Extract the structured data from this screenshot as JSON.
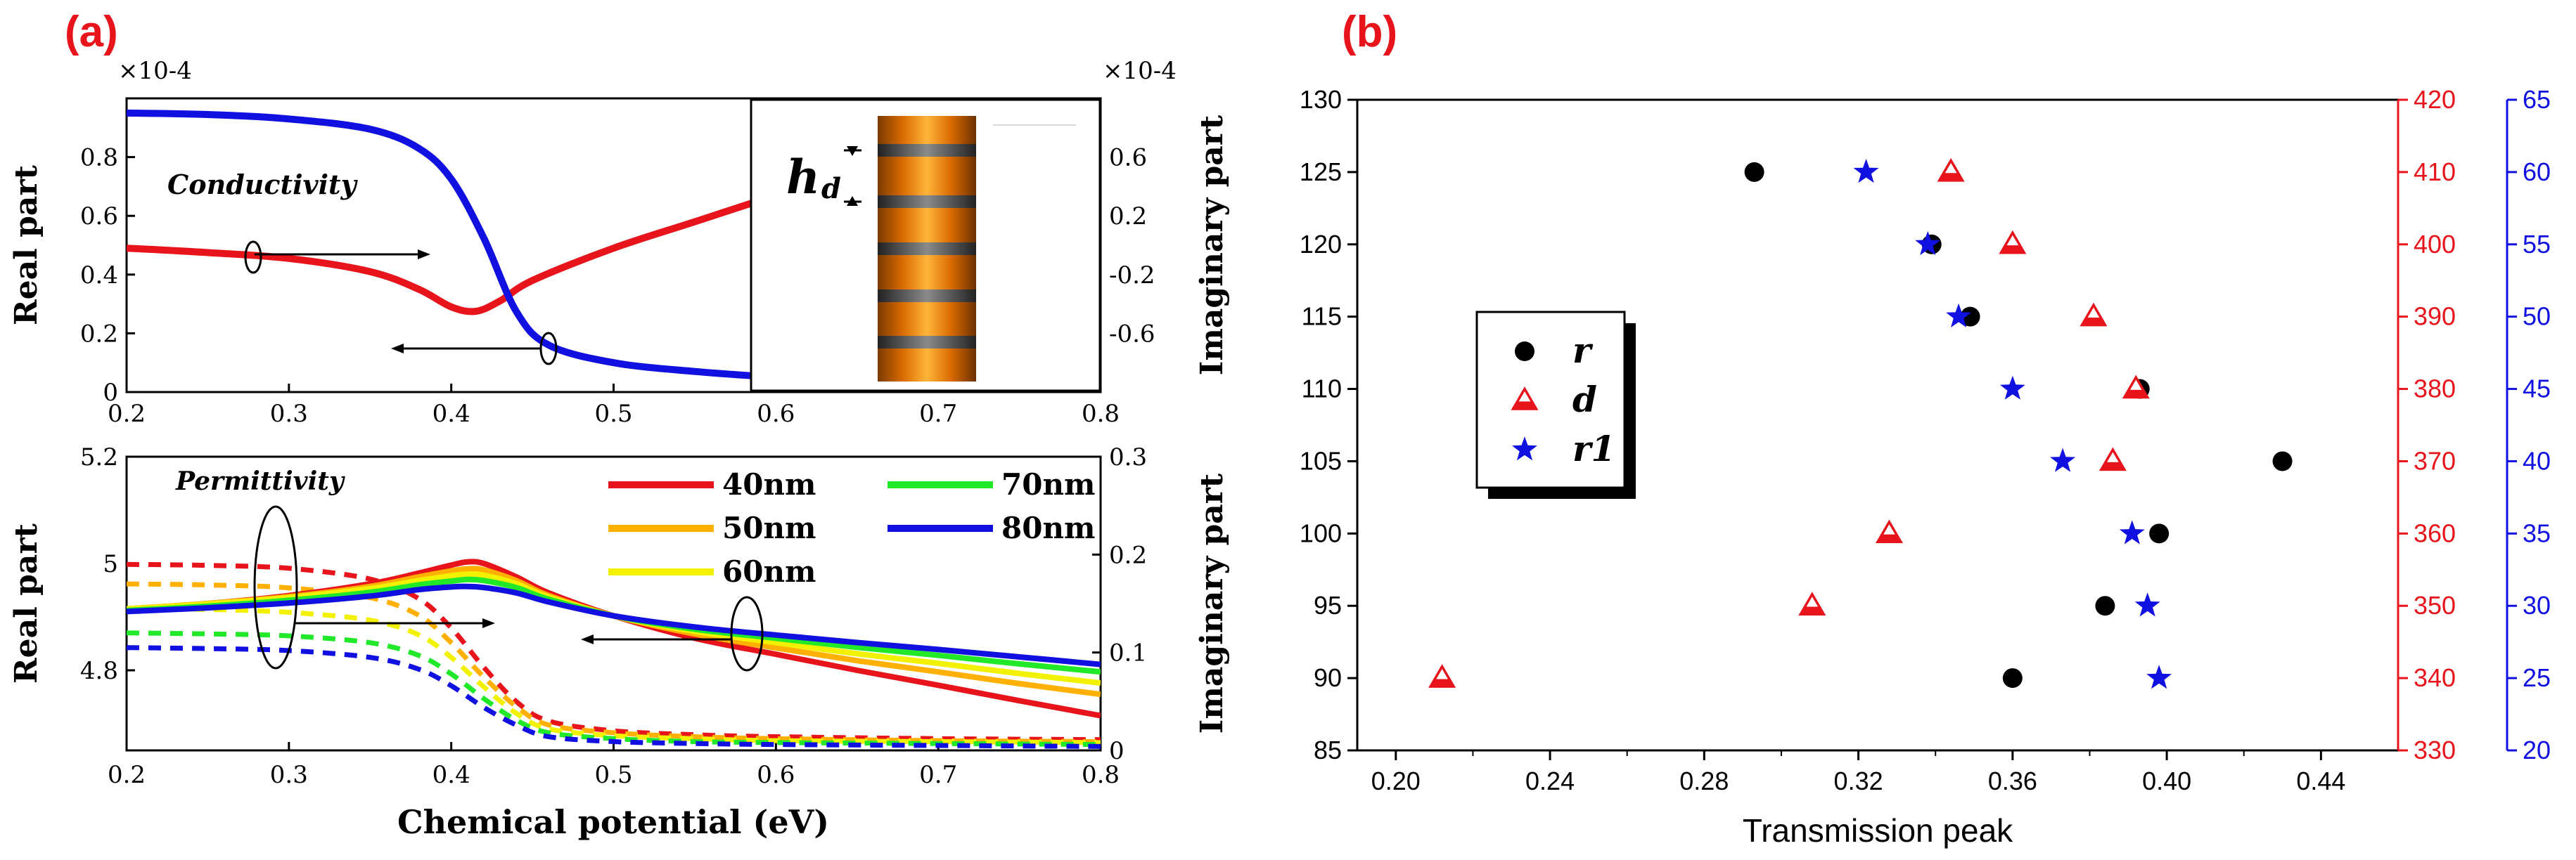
{
  "panel_labels": {
    "a": "(a)",
    "b": "(b)"
  },
  "colors": {
    "red": "#e8141c",
    "blue": "#1010e0",
    "orange": "#ffb000",
    "yellow": "#f2f200",
    "green": "#22e82a",
    "black": "#000000"
  },
  "chart_data": [
    {
      "type": "line",
      "panel": "a-top",
      "xlabel": "",
      "ylabel": "Real part",
      "ylabel_right": "Imaginary part",
      "x_ticks": [
        "0.2",
        "0.3",
        "0.4",
        "0.5",
        "0.6",
        "0.7",
        "0.8"
      ],
      "y_ticks": [
        "0",
        "0.2",
        "0.4",
        "0.6",
        "0.8"
      ],
      "y2_ticks": [
        "-0.6",
        "-0.2",
        "0.2",
        "0.6"
      ],
      "y_multiplier": "×10-4",
      "y2_multiplier": "×10-4",
      "xlim": [
        0.2,
        0.8
      ],
      "ylim": [
        0,
        1.0
      ],
      "y2lim": [
        -1.0,
        1.0
      ],
      "annotation": "Conductivity",
      "inset_label": "hd",
      "series": [
        {
          "axis": "left",
          "color": "#e8141c",
          "x": [
            0.2,
            0.25,
            0.3,
            0.35,
            0.38,
            0.4,
            0.415,
            0.43,
            0.45,
            0.5,
            0.55,
            0.6
          ],
          "y": [
            0.49,
            0.475,
            0.455,
            0.41,
            0.35,
            0.29,
            0.275,
            0.31,
            0.38,
            0.49,
            0.58,
            0.67
          ]
        },
        {
          "axis": "right",
          "color": "#1010e0",
          "x": [
            0.2,
            0.25,
            0.3,
            0.35,
            0.38,
            0.4,
            0.42,
            0.44,
            0.46,
            0.5,
            0.55,
            0.6
          ],
          "y": [
            0.9,
            0.89,
            0.86,
            0.79,
            0.66,
            0.45,
            0.05,
            -0.45,
            -0.68,
            -0.8,
            -0.86,
            -0.9
          ]
        }
      ]
    },
    {
      "type": "line",
      "panel": "a-bottom",
      "xlabel": "Chemical potential (eV)",
      "ylabel": "Real part",
      "ylabel_right": "Imaginary part",
      "x_ticks": [
        "0.2",
        "0.3",
        "0.4",
        "0.5",
        "0.6",
        "0.7",
        "0.8"
      ],
      "y_ticks": [
        "4.8",
        "5",
        "5.2"
      ],
      "y2_ticks": [
        "0",
        "0.1",
        "0.2",
        "0.3"
      ],
      "xlim": [
        0.2,
        0.8
      ],
      "ylim": [
        4.65,
        5.2
      ],
      "y2lim": [
        0,
        0.3
      ],
      "annotation": "Permittivity",
      "real_x": [
        0.2,
        0.25,
        0.3,
        0.35,
        0.38,
        0.4,
        0.41,
        0.42,
        0.44,
        0.46,
        0.5,
        0.55,
        0.6,
        0.65,
        0.7,
        0.75,
        0.8
      ],
      "imag_x": [
        0.2,
        0.25,
        0.3,
        0.35,
        0.38,
        0.4,
        0.42,
        0.44,
        0.46,
        0.5,
        0.55,
        0.6,
        0.7,
        0.8
      ],
      "series": [
        {
          "name": "40nm",
          "color": "#e8141c",
          "real": [
            4.915,
            4.925,
            4.94,
            4.962,
            4.982,
            4.997,
            5.003,
            5.0,
            4.975,
            4.945,
            4.902,
            4.86,
            4.83,
            4.8,
            4.772,
            4.743,
            4.715
          ],
          "imag": [
            0.19,
            0.189,
            0.186,
            0.175,
            0.155,
            0.125,
            0.085,
            0.05,
            0.03,
            0.02,
            0.016,
            0.014,
            0.012,
            0.011
          ]
        },
        {
          "name": "50nm",
          "color": "#ffb000",
          "real": [
            4.915,
            4.925,
            4.938,
            4.957,
            4.975,
            4.986,
            4.99,
            4.988,
            4.968,
            4.94,
            4.902,
            4.868,
            4.842,
            4.818,
            4.797,
            4.775,
            4.755
          ],
          "imag": [
            0.17,
            0.169,
            0.166,
            0.156,
            0.138,
            0.11,
            0.075,
            0.045,
            0.026,
            0.018,
            0.014,
            0.012,
            0.01,
            0.009
          ]
        },
        {
          "name": "60nm",
          "color": "#f2f200",
          "real": [
            4.915,
            4.924,
            4.936,
            4.953,
            4.968,
            4.977,
            4.98,
            4.978,
            4.962,
            4.937,
            4.902,
            4.873,
            4.852,
            4.831,
            4.813,
            4.794,
            4.776
          ],
          "imag": [
            0.145,
            0.144,
            0.141,
            0.133,
            0.118,
            0.095,
            0.065,
            0.038,
            0.022,
            0.015,
            0.012,
            0.01,
            0.009,
            0.008
          ]
        },
        {
          "name": "70nm",
          "color": "#22e82a",
          "real": [
            4.912,
            4.92,
            4.931,
            4.946,
            4.96,
            4.967,
            4.97,
            4.968,
            4.955,
            4.933,
            4.902,
            4.877,
            4.86,
            4.843,
            4.828,
            4.812,
            4.797
          ],
          "imag": [
            0.12,
            0.119,
            0.117,
            0.11,
            0.097,
            0.078,
            0.053,
            0.031,
            0.018,
            0.012,
            0.009,
            0.008,
            0.007,
            0.006
          ]
        },
        {
          "name": "80nm",
          "color": "#1010e0",
          "real": [
            4.91,
            4.917,
            4.926,
            4.939,
            4.951,
            4.956,
            4.957,
            4.955,
            4.945,
            4.928,
            4.902,
            4.881,
            4.866,
            4.852,
            4.839,
            4.825,
            4.811
          ],
          "imag": [
            0.105,
            0.104,
            0.102,
            0.095,
            0.083,
            0.066,
            0.044,
            0.026,
            0.014,
            0.009,
            0.007,
            0.006,
            0.005,
            0.004
          ]
        }
      ]
    },
    {
      "type": "scatter",
      "panel": "b",
      "xlabel": "Transmission peak",
      "ylabel": "",
      "x_ticks": [
        "0.20",
        "0.24",
        "0.28",
        "0.32",
        "0.36",
        "0.40",
        "0.44"
      ],
      "y_ticks": [
        "85",
        "90",
        "95",
        "100",
        "105",
        "110",
        "115",
        "120",
        "125",
        "130"
      ],
      "y2_ticks": [
        "330",
        "340",
        "350",
        "360",
        "370",
        "380",
        "390",
        "400",
        "410",
        "420"
      ],
      "y3_ticks": [
        "20",
        "25",
        "30",
        "35",
        "40",
        "45",
        "50",
        "55",
        "60",
        "65"
      ],
      "xlim": [
        0.19,
        0.46
      ],
      "ylim": [
        85,
        130
      ],
      "y2lim": [
        330,
        420
      ],
      "y3lim": [
        20,
        65
      ],
      "legend_position": "middle-left",
      "series": [
        {
          "name": "r",
          "marker": "circle",
          "color": "#000000",
          "axis": "left",
          "x": [
            0.293,
            0.339,
            0.349,
            0.393,
            0.43,
            0.398,
            0.384,
            0.36
          ],
          "y": [
            125,
            120,
            115,
            110,
            105,
            100,
            95,
            90
          ]
        },
        {
          "name": "d",
          "marker": "triangle",
          "color": "#e8141c",
          "axis": "right",
          "x": [
            0.344,
            0.36,
            0.381,
            0.392,
            0.386,
            0.328,
            0.308,
            0.212
          ],
          "y": [
            410,
            400,
            390,
            380,
            370,
            360,
            350,
            340
          ]
        },
        {
          "name": "r1",
          "marker": "star",
          "color": "#1010e0",
          "axis": "right2",
          "x": [
            0.322,
            0.338,
            0.346,
            0.36,
            0.373,
            0.391,
            0.395,
            0.398
          ],
          "y": [
            60,
            55,
            50,
            45,
            40,
            35,
            30,
            25
          ]
        }
      ]
    }
  ]
}
